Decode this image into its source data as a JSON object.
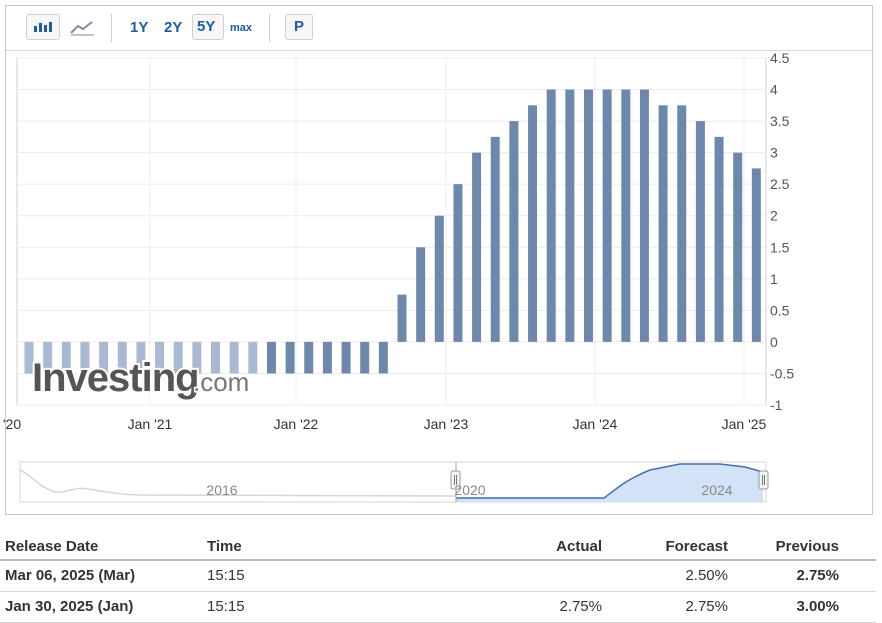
{
  "toolbar": {
    "bar_icon": "bar-chart-icon",
    "line_icon": "line-chart-icon",
    "range_1y": "1Y",
    "range_2y": "2Y",
    "range_5y": "5Y",
    "range_max": "max",
    "p_button": "P",
    "active_range": "5Y"
  },
  "watermark": {
    "brand": "Investing",
    "suffix": ".com"
  },
  "chart_data": {
    "type": "bar",
    "title": "",
    "ylabel": "",
    "y_axis_side": "right",
    "ylim": [
      -1,
      4.5
    ],
    "y_ticks": [
      "4.5",
      "4",
      "3.5",
      "3",
      "2.5",
      "2",
      "1.5",
      "1",
      "0.5",
      "0",
      "-0.5",
      "-1"
    ],
    "x_tick_labels": [
      "'20",
      "Jan '21",
      "Jan '22",
      "Jan '23",
      "Jan '24",
      "Jan '25"
    ],
    "grid": true,
    "colors": {
      "normal": "#6e88ad",
      "light": "#aab9d3"
    },
    "values": [
      -0.5,
      -0.5,
      -0.5,
      -0.5,
      -0.5,
      -0.5,
      -0.5,
      -0.5,
      -0.5,
      -0.5,
      -0.5,
      -0.5,
      -0.5,
      -0.5,
      -0.5,
      -0.5,
      -0.5,
      -0.5,
      -0.5,
      -0.5,
      0.75,
      1.5,
      2.0,
      2.5,
      3.0,
      3.25,
      3.5,
      3.75,
      4.0,
      4.0,
      4.0,
      4.0,
      4.0,
      4.0,
      3.75,
      3.75,
      3.5,
      3.25,
      3.0,
      2.75
    ],
    "light_bar_count": 13
  },
  "navigator": {
    "labels": [
      "2016",
      "2020",
      "2024"
    ]
  },
  "table": {
    "headers": {
      "release_date": "Release Date",
      "time": "Time",
      "actual": "Actual",
      "forecast": "Forecast",
      "previous": "Previous"
    },
    "rows": [
      {
        "release_date": "Mar 06, 2025 (Mar)",
        "time": "15:15",
        "actual": "",
        "forecast": "2.50%",
        "previous": "2.75%"
      },
      {
        "release_date": "Jan 30, 2025 (Jan)",
        "time": "15:15",
        "actual": "2.75%",
        "forecast": "2.75%",
        "previous": "3.00%"
      }
    ]
  }
}
